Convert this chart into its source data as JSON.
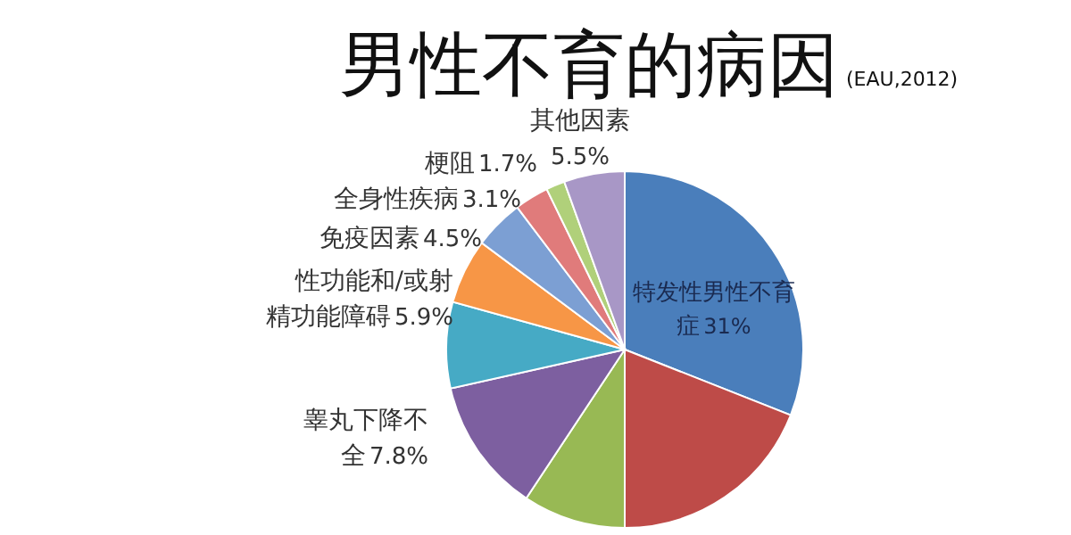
{
  "chart_data": {
    "type": "pie",
    "title": "男性不育的病因",
    "subtitle": "(EAU,2012)",
    "value_labels": [
      "31%",
      null,
      null,
      null,
      "7.8%",
      "5.9%",
      "4.5%",
      "3.1%",
      "1.7%",
      "5.5%"
    ],
    "categories": [
      "特发性男性不育症",
      null,
      null,
      null,
      "睾丸下降不全",
      "性功能和/或射精功能障碍",
      "免疫因素",
      "全身性疾病",
      "梗阻",
      "其他因素"
    ],
    "values": [
      31,
      19,
      9.3,
      12.2,
      7.8,
      5.9,
      4.5,
      3.1,
      1.7,
      5.5
    ],
    "colors": [
      "#4a7ebb",
      "#be4b48",
      "#98b954",
      "#7d5fa0",
      "#46aac5",
      "#f79646",
      "#7c9fd3",
      "#e07b7b",
      "#b0d07a",
      "#a897c6"
    ]
  }
}
